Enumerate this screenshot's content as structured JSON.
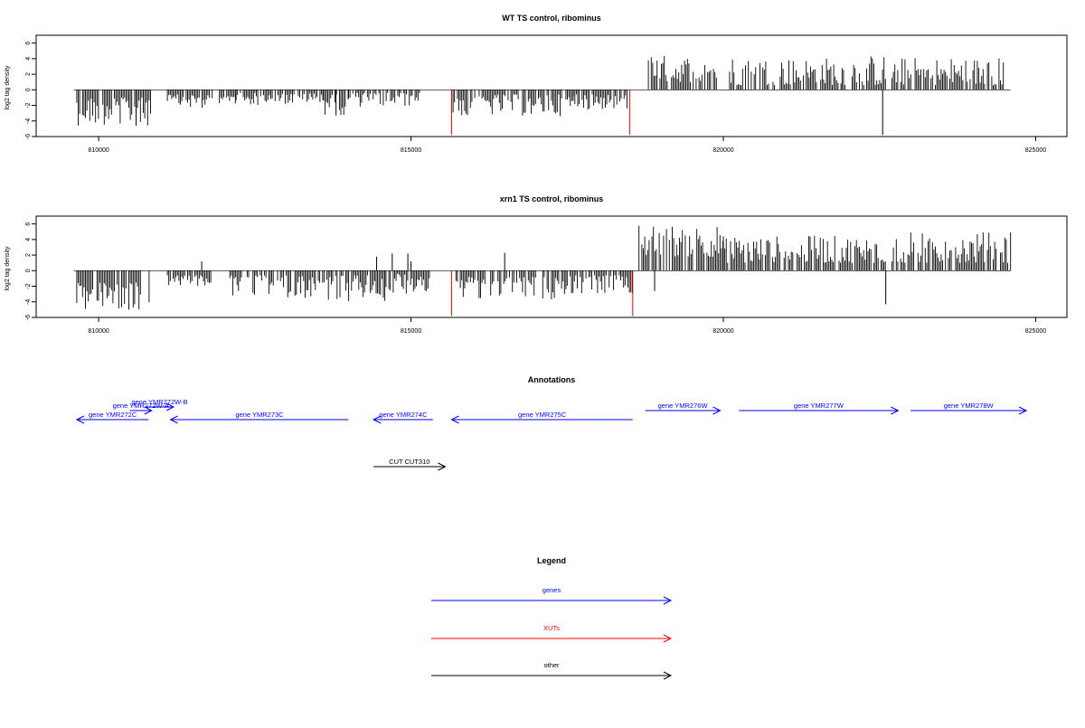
{
  "chart_data": [
    {
      "type": "bar",
      "title": "WT TS control, ribominus",
      "ylabel": "log2 tag density",
      "xlabel": "",
      "xlim": [
        809000,
        825500
      ],
      "ylim": [
        -6,
        7
      ],
      "xticks": [
        810000,
        815000,
        820000,
        825000
      ],
      "xtick_labels": [
        "810000",
        "815000",
        "820000",
        "825000"
      ],
      "yticks": [
        -6,
        -4,
        -2,
        0,
        2,
        4,
        6
      ],
      "ytick_labels": [
        "-6",
        "-4",
        "-2",
        "0",
        "2",
        "4",
        "6"
      ],
      "baseline": {
        "from": 809600,
        "to": 824600,
        "color": "#000000"
      },
      "series": [
        {
          "strand": "minus",
          "color": "#000000",
          "regions": [
            {
              "from": 809650,
              "to": 810850,
              "min": 1.0,
              "max": 4.6
            },
            {
              "from": 811100,
              "to": 812200,
              "min": 0.6,
              "max": 2.4
            },
            {
              "from": 812200,
              "to": 813600,
              "min": 0.4,
              "max": 2.0
            },
            {
              "from": 813600,
              "to": 814000,
              "min": 0.6,
              "max": 3.3
            },
            {
              "from": 814000,
              "to": 815150,
              "min": 0.4,
              "max": 2.2
            },
            {
              "from": 815650,
              "to": 817600,
              "min": 0.6,
              "max": 3.4
            },
            {
              "from": 817600,
              "to": 818500,
              "min": 0.5,
              "max": 2.6
            }
          ]
        },
        {
          "strand": "plus",
          "color": "#000000",
          "regions": [
            {
              "from": 818800,
              "to": 819900,
              "min": 1.0,
              "max": 4.5
            },
            {
              "from": 820100,
              "to": 821900,
              "min": 0.6,
              "max": 4.2
            },
            {
              "from": 821900,
              "to": 822600,
              "min": 0.6,
              "max": 4.5
            },
            {
              "from": 822700,
              "to": 824500,
              "min": 0.6,
              "max": 4.2
            }
          ]
        },
        {
          "strand": "spike",
          "values": [
            {
              "x": 815650,
              "y": -5.8,
              "color": "#ff0000"
            },
            {
              "x": 818500,
              "y": -5.8,
              "color": "#ff0000"
            },
            {
              "x": 822550,
              "y": -5.8,
              "color": "#000000"
            },
            {
              "x": 813800,
              "y": -3.3,
              "color": "#000000"
            },
            {
              "x": 810600,
              "y": -4.6,
              "color": "#000000"
            }
          ]
        }
      ]
    },
    {
      "type": "bar",
      "title": "xrn1 TS control, ribominus",
      "ylabel": "log2 tag density",
      "xlabel": "",
      "xlim": [
        809000,
        825500
      ],
      "ylim": [
        -6,
        7
      ],
      "xticks": [
        810000,
        815000,
        820000,
        825000
      ],
      "xtick_labels": [
        "810000",
        "815000",
        "820000",
        "825000"
      ],
      "yticks": [
        -6,
        -4,
        -2,
        0,
        2,
        4,
        6
      ],
      "ytick_labels": [
        "-6",
        "-4",
        "-2",
        "0",
        "2",
        "4",
        "6"
      ],
      "baseline": {
        "from": 809600,
        "to": 824600,
        "color": "#000000"
      },
      "series": [
        {
          "strand": "minus",
          "color": "#000000",
          "regions": [
            {
              "from": 809650,
              "to": 810850,
              "min": 1.5,
              "max": 5.2
            },
            {
              "from": 811100,
              "to": 811800,
              "min": 0.6,
              "max": 2.0
            },
            {
              "from": 812100,
              "to": 813400,
              "min": 0.6,
              "max": 3.5
            },
            {
              "from": 813400,
              "to": 814600,
              "min": 0.6,
              "max": 3.9
            },
            {
              "from": 814600,
              "to": 815300,
              "min": 0.4,
              "max": 3.0
            },
            {
              "from": 815650,
              "to": 817500,
              "min": 0.8,
              "max": 3.7
            },
            {
              "from": 817500,
              "to": 818550,
              "min": 0.6,
              "max": 3.0
            }
          ]
        },
        {
          "strand": "plus",
          "color": "#000000",
          "regions": [
            {
              "from": 818650,
              "to": 820000,
              "min": 1.8,
              "max": 6.0
            },
            {
              "from": 820000,
              "to": 822600,
              "min": 1.0,
              "max": 4.5
            },
            {
              "from": 822700,
              "to": 824600,
              "min": 1.0,
              "max": 5.0
            }
          ]
        },
        {
          "strand": "spike",
          "values": [
            {
              "x": 815650,
              "y": -5.8,
              "color": "#ff0000"
            },
            {
              "x": 818550,
              "y": -5.8,
              "color": "#ff0000"
            },
            {
              "x": 822600,
              "y": -4.3,
              "color": "#000000"
            },
            {
              "x": 818900,
              "y": -2.6,
              "color": "#000000"
            },
            {
              "x": 811650,
              "y": 1.2,
              "color": "#000000"
            },
            {
              "x": 814450,
              "y": 1.8,
              "color": "#000000"
            },
            {
              "x": 814700,
              "y": 2.2,
              "color": "#000000"
            },
            {
              "x": 814950,
              "y": 2.2,
              "color": "#000000"
            },
            {
              "x": 815000,
              "y": 1.2,
              "color": "#000000"
            },
            {
              "x": 816500,
              "y": 2.3,
              "color": "#000000"
            }
          ]
        }
      ]
    }
  ],
  "annotations": {
    "title": "Annotations",
    "features": [
      {
        "label": "gene YMR272C",
        "start": 810800,
        "end": 809650,
        "dir": "left",
        "color": "#0000ff",
        "lane": 1
      },
      {
        "label": "gene YMR272W-A",
        "start": 810500,
        "end": 810850,
        "dir": "right",
        "color": "#0000ff",
        "lane": 0
      },
      {
        "label": "gene YMR272W-B",
        "start": 810750,
        "end": 811200,
        "dir": "right",
        "color": "#0000ff",
        "lane": -1
      },
      {
        "label": "gene YMR273C",
        "start": 814000,
        "end": 811150,
        "dir": "left",
        "color": "#0000ff",
        "lane": 1
      },
      {
        "label": "gene YMR274C",
        "start": 815350,
        "end": 814400,
        "dir": "left",
        "color": "#0000ff",
        "lane": 1
      },
      {
        "label": "gene YMR275C",
        "start": 818550,
        "end": 815650,
        "dir": "left",
        "color": "#0000ff",
        "lane": 1
      },
      {
        "label": "gene YMR276W",
        "start": 818750,
        "end": 819950,
        "dir": "right",
        "color": "#0000ff",
        "lane": 0
      },
      {
        "label": "gene YMR277W",
        "start": 820250,
        "end": 822800,
        "dir": "right",
        "color": "#0000ff",
        "lane": 0
      },
      {
        "label": "gene YMR278W",
        "start": 823000,
        "end": 824850,
        "dir": "right",
        "color": "#0000ff",
        "lane": 0
      },
      {
        "label": "CUT CUT310",
        "start": 814400,
        "end": 815550,
        "dir": "right",
        "color": "#000000",
        "lane": 5
      }
    ]
  },
  "legend": {
    "title": "Legend",
    "items": [
      {
        "label": "genes",
        "color": "#0000ff"
      },
      {
        "label": "XUTs",
        "color": "#ff0000"
      },
      {
        "label": "other",
        "color": "#000000"
      }
    ]
  }
}
